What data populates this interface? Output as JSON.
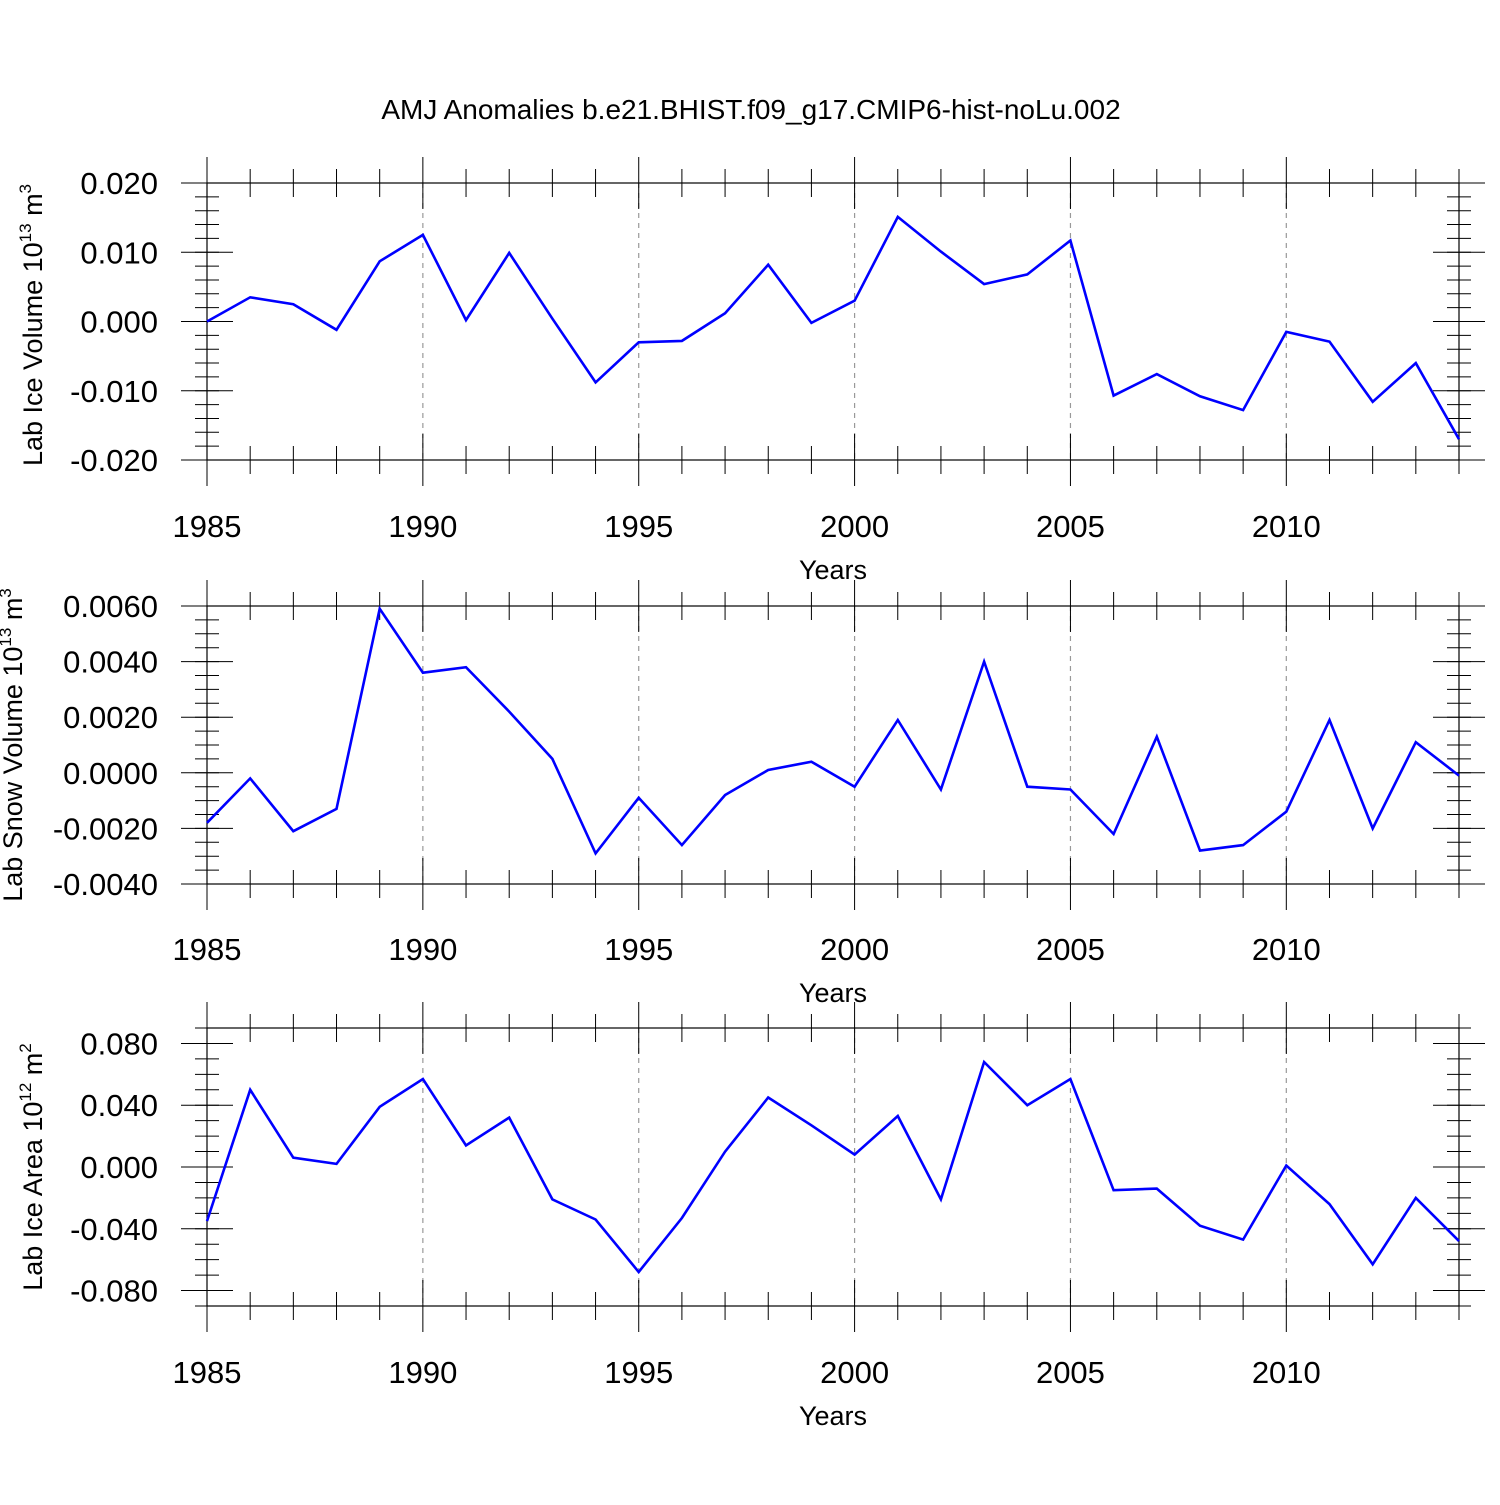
{
  "figure": {
    "title": "AMJ Anomalies b.e21.BHIST.f09_g17.CMIP6-hist-noLu.002",
    "line_color": "#0000ff",
    "grid_color": "#999999"
  },
  "chart_data": [
    {
      "type": "line",
      "title": "AMJ Anomalies b.e21.BHIST.f09_g17.CMIP6-hist-noLu.002",
      "xlabel": "Years",
      "ylabel": "Lab Ice Volume 10",
      "ylabel_sup1": "13",
      "ylabel_mid": " m",
      "ylabel_sup2": "3",
      "x": [
        1985,
        1986,
        1987,
        1988,
        1989,
        1990,
        1991,
        1992,
        1993,
        1994,
        1995,
        1996,
        1997,
        1998,
        1999,
        2000,
        2001,
        2002,
        2003,
        2004,
        2005,
        2006,
        2007,
        2008,
        2009,
        2010,
        2011,
        2012,
        2013,
        2014
      ],
      "series": [
        {
          "name": "Lab Ice Volume",
          "values": [
            0.0,
            0.0035,
            0.0025,
            -0.0012,
            0.0087,
            0.0125,
            0.0002,
            0.0099,
            0.0004,
            -0.0088,
            -0.003,
            -0.0028,
            0.0012,
            0.0082,
            -0.0002,
            0.003,
            0.0151,
            0.0101,
            0.0054,
            0.0068,
            0.0117,
            -0.0107,
            -0.0076,
            -0.0108,
            -0.0128,
            -0.0015,
            -0.0029,
            -0.0116,
            -0.006,
            -0.017
          ]
        }
      ],
      "xlim": [
        1985,
        2014
      ],
      "ylim": [
        -0.02,
        0.02
      ],
      "yticks": [
        -0.02,
        -0.01,
        0.0,
        0.01,
        0.02
      ],
      "ytick_labels": [
        "-0.020",
        "-0.010",
        "0.000",
        "0.010",
        "0.020"
      ],
      "xticks": [
        1985,
        1990,
        1995,
        2000,
        2005,
        2010
      ],
      "xtick_labels": [
        "1985",
        "1990",
        "1995",
        "2000",
        "2005",
        "2010"
      ],
      "minor_y": 0.002,
      "grid": "vertical dashed at major x ticks"
    },
    {
      "type": "line",
      "xlabel": "Years",
      "ylabel": "Lab Snow Volume 10",
      "ylabel_sup1": "13",
      "ylabel_mid": " m",
      "ylabel_sup2": "3",
      "x": [
        1985,
        1986,
        1987,
        1988,
        1989,
        1990,
        1991,
        1992,
        1993,
        1994,
        1995,
        1996,
        1997,
        1998,
        1999,
        2000,
        2001,
        2002,
        2003,
        2004,
        2005,
        2006,
        2007,
        2008,
        2009,
        2010,
        2011,
        2012,
        2013,
        2014
      ],
      "series": [
        {
          "name": "Lab Snow Volume",
          "values": [
            -0.0018,
            -0.0002,
            -0.0021,
            -0.0013,
            0.0059,
            0.0036,
            0.0038,
            0.0022,
            0.0005,
            -0.0029,
            -0.0009,
            -0.0026,
            -0.0008,
            0.0001,
            0.0004,
            -0.0005,
            0.0019,
            -0.0006,
            0.004,
            -0.0005,
            -0.0006,
            -0.0022,
            0.0013,
            -0.0028,
            -0.0026,
            -0.0014,
            0.0019,
            -0.002,
            0.0011,
            -0.0001
          ]
        }
      ],
      "xlim": [
        1985,
        2014
      ],
      "ylim": [
        -0.004,
        0.006
      ],
      "yticks": [
        -0.004,
        -0.002,
        0.0,
        0.002,
        0.004,
        0.006
      ],
      "ytick_labels": [
        "-0.0040",
        "-0.0020",
        "0.0000",
        "0.0020",
        "0.0040",
        "0.0060"
      ],
      "xticks": [
        1985,
        1990,
        1995,
        2000,
        2005,
        2010
      ],
      "xtick_labels": [
        "1985",
        "1990",
        "1995",
        "2000",
        "2005",
        "2010"
      ],
      "minor_y": 0.0005,
      "grid": "vertical dashed at major x ticks"
    },
    {
      "type": "line",
      "xlabel": "Years",
      "ylabel": "Lab Ice Area 10",
      "ylabel_sup1": "12",
      "ylabel_mid": " m",
      "ylabel_sup2": "2",
      "x": [
        1985,
        1986,
        1987,
        1988,
        1989,
        1990,
        1991,
        1992,
        1993,
        1994,
        1995,
        1996,
        1997,
        1998,
        1999,
        2000,
        2001,
        2002,
        2003,
        2004,
        2005,
        2006,
        2007,
        2008,
        2009,
        2010,
        2011,
        2012,
        2013,
        2014
      ],
      "series": [
        {
          "name": "Lab Ice Area",
          "values": [
            -0.035,
            0.05,
            0.006,
            0.002,
            0.039,
            0.057,
            0.014,
            0.032,
            -0.021,
            -0.034,
            -0.068,
            -0.033,
            0.01,
            0.045,
            0.027,
            0.008,
            0.033,
            -0.021,
            0.068,
            0.04,
            0.057,
            -0.015,
            -0.014,
            -0.038,
            -0.047,
            0.001,
            -0.024,
            -0.063,
            -0.02,
            -0.048
          ]
        }
      ],
      "xlim": [
        1985,
        2014
      ],
      "ylim": [
        -0.09,
        0.09
      ],
      "yticks": [
        -0.08,
        -0.04,
        0.0,
        0.04,
        0.08
      ],
      "ytick_labels": [
        "-0.080",
        "-0.040",
        "0.000",
        "0.040",
        "0.080"
      ],
      "xticks": [
        1985,
        1990,
        1995,
        2000,
        2005,
        2010
      ],
      "xtick_labels": [
        "1985",
        "1990",
        "1995",
        "2000",
        "2005",
        "2010"
      ],
      "minor_y": 0.01,
      "grid": "vertical dashed at major x ticks"
    }
  ]
}
